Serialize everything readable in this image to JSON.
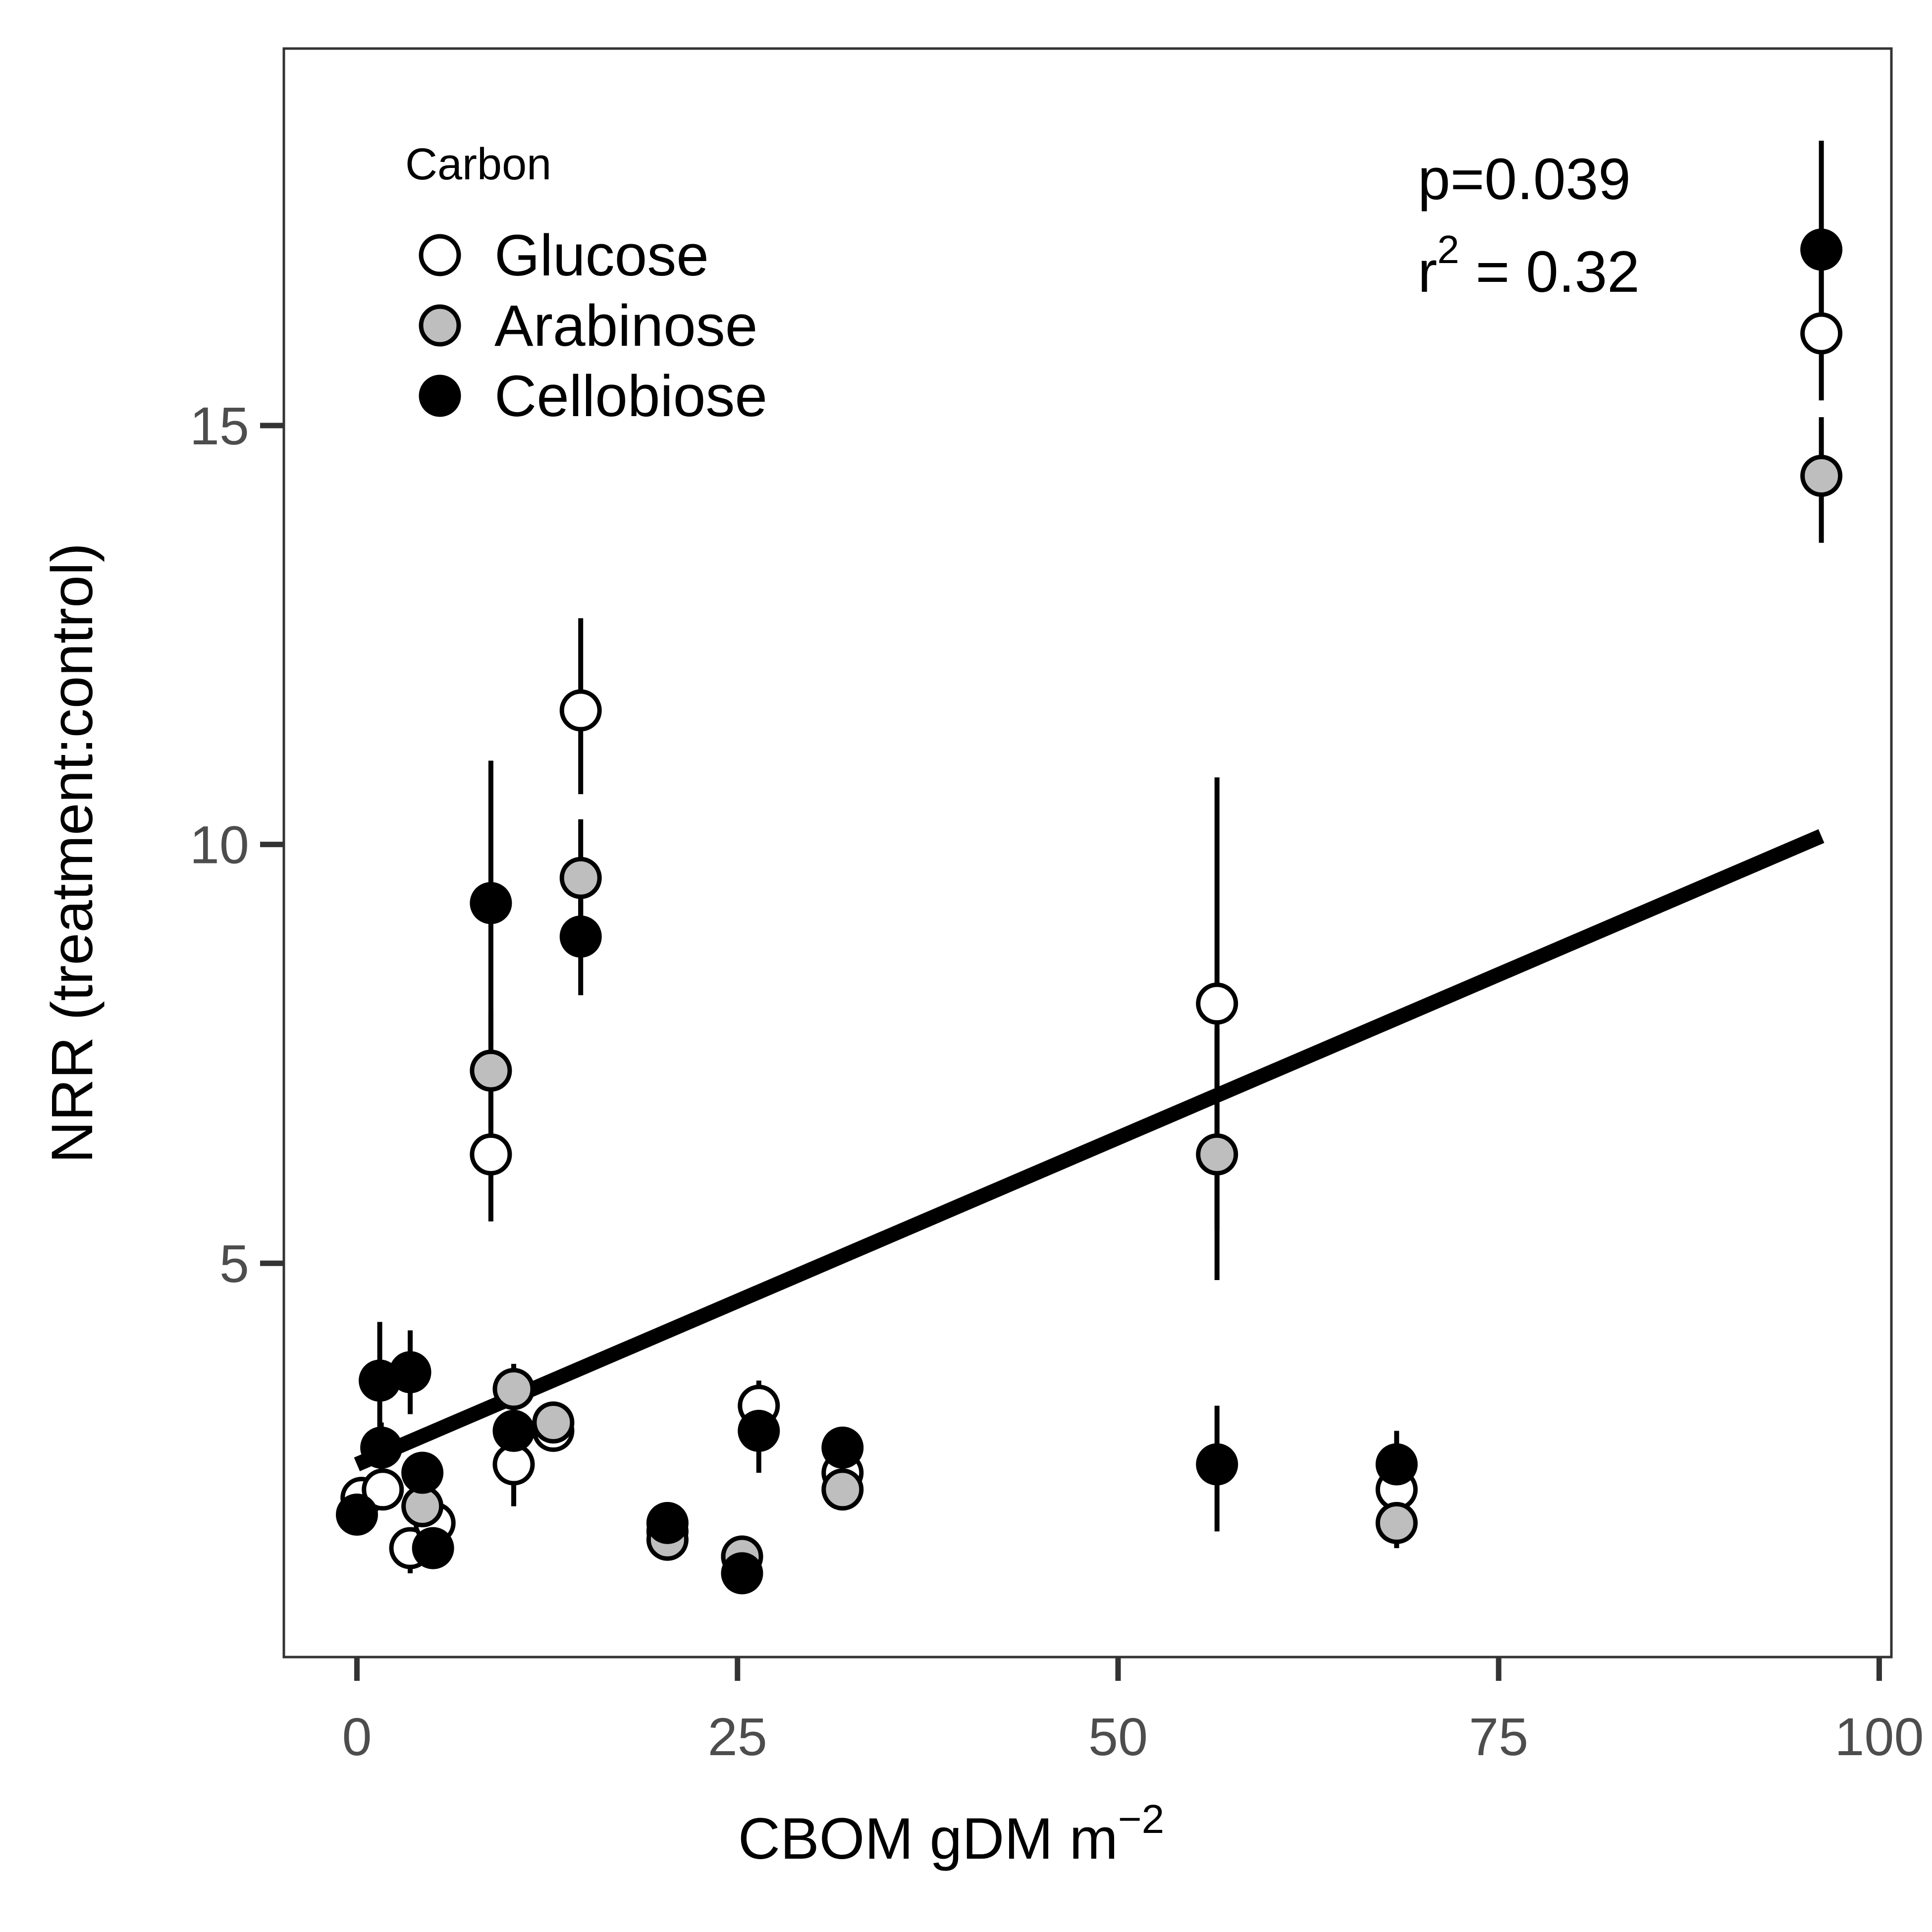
{
  "chart_data": {
    "type": "scatter",
    "xlabel": "CBOM gDM m",
    "xlabel_sup": "−2",
    "ylabel": "NRR (treatment:control)",
    "xlim": [
      -4.8,
      100.8
    ],
    "ylim": [
      0.3,
      19.5
    ],
    "xticks": [
      0,
      25,
      50,
      75,
      100
    ],
    "yticks": [
      5,
      10,
      15
    ],
    "grid": false,
    "legend": {
      "title": "Carbon",
      "placement": "top-left",
      "entries": [
        {
          "label": "Glucose",
          "color": "#ffffff"
        },
        {
          "label": "Arabinose",
          "color": "#bebebe"
        },
        {
          "label": "Cellobiose",
          "color": "#000000"
        }
      ]
    },
    "annotations": {
      "p_text": "p=0.039",
      "r2_prefix": "r",
      "r2_sup": "2",
      "r2_value": " = 0.32"
    },
    "regression": {
      "x": [
        0,
        96.2
      ],
      "y": [
        2.6,
        10.1
      ]
    },
    "series": [
      {
        "name": "Glucose",
        "color": "#ffffff",
        "points": [
          {
            "x": 8.8,
            "y": 6.3,
            "lo": 5.5,
            "hi": 7.1
          },
          {
            "x": 14.7,
            "y": 11.6,
            "lo": 10.6,
            "hi": 12.7
          },
          {
            "x": 56.5,
            "y": 8.1,
            "lo": 5.4,
            "hi": 10.8
          },
          {
            "x": 96.2,
            "y": 16.1,
            "lo": 15.3,
            "hi": 17.0
          },
          {
            "x": 26.4,
            "y": 3.3,
            "lo": 2.8,
            "hi": 3.6
          },
          {
            "x": 10.3,
            "y": 2.6,
            "lo": 2.1,
            "hi": 3.1
          },
          {
            "x": 12.9,
            "y": 3.0,
            "lo": 2.8,
            "hi": 3.2
          },
          {
            "x": 0.3,
            "y": 2.2,
            "lo": 2.0,
            "hi": 2.4
          },
          {
            "x": 1.7,
            "y": 2.3,
            "lo": 2.1,
            "hi": 2.5
          },
          {
            "x": 3.5,
            "y": 1.6,
            "lo": 1.3,
            "hi": 1.8
          },
          {
            "x": 5.1,
            "y": 1.9,
            "lo": 1.7,
            "hi": 2.1
          },
          {
            "x": 20.4,
            "y": 1.8,
            "lo": 1.6,
            "hi": 2.0
          },
          {
            "x": 25.3,
            "y": 1.5,
            "lo": 1.3,
            "hi": 1.7
          },
          {
            "x": 31.9,
            "y": 2.5,
            "lo": 2.3,
            "hi": 2.7
          },
          {
            "x": 68.3,
            "y": 2.3,
            "lo": 2.0,
            "hi": 2.6
          }
        ]
      },
      {
        "name": "Arabinose",
        "color": "#bebebe",
        "points": [
          {
            "x": 8.8,
            "y": 7.3,
            "lo": 6.6,
            "hi": 8.0
          },
          {
            "x": 14.7,
            "y": 9.6,
            "lo": 8.9,
            "hi": 10.3
          },
          {
            "x": 56.5,
            "y": 6.3,
            "lo": 4.8,
            "hi": 7.8
          },
          {
            "x": 96.2,
            "y": 14.4,
            "lo": 13.6,
            "hi": 15.1
          },
          {
            "x": 10.3,
            "y": 3.5,
            "lo": 3.2,
            "hi": 3.8
          },
          {
            "x": 12.9,
            "y": 3.1,
            "lo": 2.9,
            "hi": 3.3
          },
          {
            "x": 4.3,
            "y": 2.1,
            "lo": 1.9,
            "hi": 2.3
          },
          {
            "x": 20.4,
            "y": 1.7,
            "lo": 1.5,
            "hi": 1.9
          },
          {
            "x": 25.3,
            "y": 1.5,
            "lo": 1.3,
            "hi": 1.7
          },
          {
            "x": 31.9,
            "y": 2.3,
            "lo": 2.1,
            "hi": 2.5
          },
          {
            "x": 68.3,
            "y": 1.9,
            "lo": 1.6,
            "hi": 2.2
          }
        ]
      },
      {
        "name": "Cellobiose",
        "color": "#000000",
        "points": [
          {
            "x": 8.8,
            "y": 9.3,
            "lo": 7.6,
            "hi": 11.0
          },
          {
            "x": 14.7,
            "y": 8.9,
            "lo": 8.2,
            "hi": 9.6
          },
          {
            "x": 96.2,
            "y": 17.1,
            "lo": 16.2,
            "hi": 18.4
          },
          {
            "x": 56.5,
            "y": 2.6,
            "lo": 1.8,
            "hi": 3.3
          },
          {
            "x": 1.5,
            "y": 3.6,
            "lo": 2.9,
            "hi": 4.3
          },
          {
            "x": 3.5,
            "y": 3.7,
            "lo": 3.2,
            "hi": 4.2
          },
          {
            "x": 1.6,
            "y": 2.8,
            "lo": 2.5,
            "hi": 3.1
          },
          {
            "x": 4.3,
            "y": 2.5,
            "lo": 2.3,
            "hi": 2.7
          },
          {
            "x": 10.3,
            "y": 3.0,
            "lo": 2.7,
            "hi": 3.3
          },
          {
            "x": 0.0,
            "y": 2.0,
            "lo": 1.8,
            "hi": 2.2
          },
          {
            "x": 5.0,
            "y": 1.6,
            "lo": 1.4,
            "hi": 1.8
          },
          {
            "x": 20.4,
            "y": 1.9,
            "lo": 1.7,
            "hi": 2.1
          },
          {
            "x": 25.3,
            "y": 1.3,
            "lo": 1.1,
            "hi": 1.5
          },
          {
            "x": 26.4,
            "y": 3.0,
            "lo": 2.5,
            "hi": 3.4
          },
          {
            "x": 31.9,
            "y": 2.8,
            "lo": 2.6,
            "hi": 3.0
          },
          {
            "x": 68.3,
            "y": 2.6,
            "lo": 2.2,
            "hi": 3.0
          }
        ]
      }
    ]
  }
}
